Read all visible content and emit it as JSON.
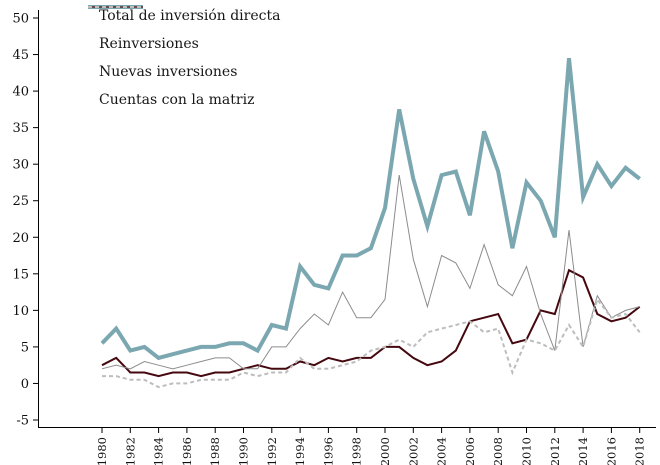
{
  "chart_data": {
    "type": "line",
    "title": "",
    "xlabel": "",
    "ylabel": "",
    "ylim": [
      -5,
      50
    ],
    "grid": false,
    "legend_position": "top-left",
    "y_ticks": [
      -5,
      0,
      5,
      10,
      15,
      20,
      25,
      30,
      35,
      40,
      45,
      50
    ],
    "x": [
      1980,
      1981,
      1982,
      1983,
      1984,
      1985,
      1986,
      1987,
      1988,
      1989,
      1990,
      1991,
      1992,
      1993,
      1994,
      1995,
      1996,
      1997,
      1998,
      1999,
      2000,
      2001,
      2002,
      2003,
      2004,
      2005,
      2006,
      2007,
      2008,
      2009,
      2010,
      2011,
      2012,
      2013,
      2014,
      2015,
      2016,
      2017,
      2018
    ],
    "x_tick_labels": [
      "1980",
      "1982",
      "1984",
      "1986",
      "1988",
      "1990",
      "1992",
      "1994",
      "1996",
      "1998",
      "2000",
      "2002",
      "2004",
      "2006",
      "2008",
      "2010",
      "2012",
      "2014",
      "2016",
      "2018"
    ],
    "series": [
      {
        "name": "Total de inversión directa",
        "color": "#7ba7b1",
        "width": 4,
        "values": [
          5.5,
          7.5,
          4.5,
          5,
          3.5,
          4,
          4.5,
          5,
          5,
          5.5,
          5.5,
          4.5,
          8,
          7.5,
          16,
          13.5,
          13,
          17.5,
          17.5,
          18.5,
          24,
          37.5,
          28,
          21.5,
          28.5,
          29,
          23,
          34.5,
          29,
          18.5,
          27.5,
          25,
          20,
          44.5,
          25.5,
          30,
          27,
          29.5,
          28
        ]
      },
      {
        "name": "Reinversiones",
        "color": "#45080f",
        "width": 2,
        "values": [
          2.5,
          3.5,
          1.5,
          1.5,
          1,
          1.5,
          1.5,
          1,
          1.5,
          1.5,
          2,
          2.5,
          2,
          2,
          3,
          2.5,
          3.5,
          3,
          3.5,
          3.5,
          5,
          5,
          3.5,
          2.5,
          3,
          4.5,
          8.5,
          9,
          9.5,
          5.5,
          6,
          10,
          9.5,
          15.5,
          14.5,
          9.5,
          8.5,
          9,
          10.5
        ]
      },
      {
        "name": "Nuevas inversiones",
        "color": "#8c8c8c",
        "width": 1,
        "values": [
          2,
          2.5,
          2,
          3,
          2.5,
          2,
          2.5,
          3,
          3.5,
          3.5,
          2,
          2,
          5,
          5,
          7.5,
          9.5,
          8,
          12.5,
          9,
          9,
          11.5,
          28.5,
          17,
          10.5,
          17.5,
          16.5,
          13,
          19,
          13.5,
          12,
          16,
          9.5,
          4.5,
          21,
          5,
          12,
          9,
          10,
          10.5
        ]
      },
      {
        "name": "Cuentas con la matriz",
        "color": "#bdbdbd",
        "width": 2,
        "dash": "4 3",
        "values": [
          1,
          1,
          0.5,
          0.5,
          -0.5,
          0,
          0,
          0.5,
          0.5,
          0.5,
          1.5,
          1,
          1.5,
          1.5,
          3.5,
          2,
          2,
          2.5,
          3,
          4.5,
          5,
          6,
          5,
          7,
          7.5,
          8,
          8.5,
          7,
          7.5,
          1.5,
          6,
          5.5,
          4.5,
          8,
          5,
          11.5,
          9,
          9.5,
          7
        ]
      }
    ]
  }
}
